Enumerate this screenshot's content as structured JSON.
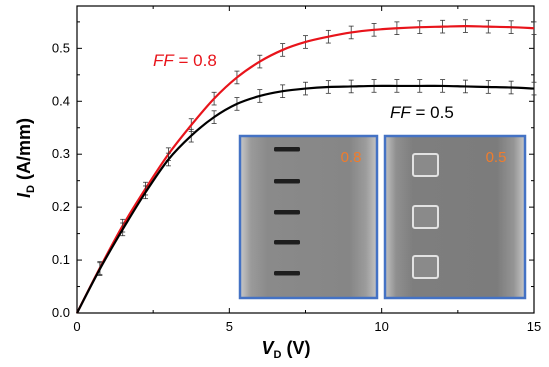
{
  "chart_data": {
    "type": "line",
    "xlabel": {
      "symbol": "V",
      "subscript": "D",
      "unit": "(V)"
    },
    "ylabel": {
      "symbol": "I",
      "subscript": "D",
      "unit": "(A/mm)"
    },
    "xlim": [
      0,
      15
    ],
    "ylim": [
      0,
      0.58
    ],
    "xticks": [
      0,
      5,
      10,
      15
    ],
    "xtick_labels": [
      "0",
      "5",
      "10",
      "15"
    ],
    "yticks": [
      0.0,
      0.1,
      0.2,
      0.3,
      0.4,
      0.5
    ],
    "ytick_labels": [
      "0.0",
      "0.1",
      "0.2",
      "0.3",
      "0.4",
      "0.5"
    ],
    "grid": false,
    "series": [
      {
        "color": "#e8141b",
        "x": [
          0,
          0.75,
          1.5,
          2.25,
          3.0,
          3.75,
          4.5,
          5.25,
          6.0,
          6.75,
          7.5,
          8.25,
          9.0,
          9.75,
          10.5,
          11.25,
          12.0,
          12.75,
          13.5,
          14.25,
          15.0
        ],
        "y": [
          0,
          0.085,
          0.165,
          0.235,
          0.3,
          0.355,
          0.405,
          0.445,
          0.475,
          0.497,
          0.512,
          0.522,
          0.53,
          0.535,
          0.538,
          0.54,
          0.541,
          0.542,
          0.541,
          0.54,
          0.538
        ],
        "error": 0.012
      },
      {
        "color": "#000000",
        "x": [
          0,
          0.75,
          1.5,
          2.25,
          3.0,
          3.75,
          4.5,
          5.25,
          6.0,
          6.75,
          7.5,
          8.25,
          9.0,
          9.75,
          10.5,
          11.25,
          12.0,
          12.75,
          13.5,
          14.25,
          15.0
        ],
        "y": [
          0,
          0.083,
          0.158,
          0.228,
          0.29,
          0.335,
          0.37,
          0.395,
          0.41,
          0.419,
          0.424,
          0.427,
          0.428,
          0.429,
          0.429,
          0.429,
          0.429,
          0.428,
          0.427,
          0.426,
          0.424
        ],
        "error": 0.012
      }
    ],
    "annotations": [
      {
        "italic": "FF",
        "text": " = 0.8",
        "color": "#e8141b"
      },
      {
        "italic": "FF",
        "text": " = 0.5",
        "color": "#000000"
      }
    ],
    "insets": [
      {
        "label": "0.8",
        "label_color": "#f07c2c",
        "frame_color": "#4472c4",
        "pattern": "slots"
      },
      {
        "label": "0.5",
        "label_color": "#f07c2c",
        "frame_color": "#4472c4",
        "pattern": "squares"
      }
    ]
  }
}
